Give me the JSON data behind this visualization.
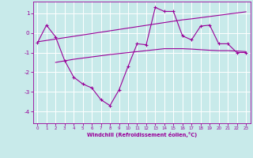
{
  "bg_color": "#c8eaea",
  "line_color": "#990099",
  "grid_color": "#ffffff",
  "xlabel": "Windchill (Refroidissement éolien,°C)",
  "xlabel_color": "#990099",
  "tick_color": "#990099",
  "xlim": [
    -0.5,
    23.5
  ],
  "ylim": [
    -4.6,
    1.6
  ],
  "yticks": [
    1,
    0,
    -1,
    -2,
    -3,
    -4
  ],
  "xticks": [
    0,
    1,
    2,
    3,
    4,
    5,
    6,
    7,
    8,
    9,
    10,
    11,
    12,
    13,
    14,
    15,
    16,
    17,
    18,
    19,
    20,
    21,
    22,
    23
  ],
  "line1_x": [
    0,
    1,
    2,
    3,
    4,
    5,
    6,
    7,
    8,
    9,
    10,
    11,
    12,
    13,
    14,
    15,
    16,
    17,
    18,
    19,
    20,
    21,
    22,
    23
  ],
  "line1_y": [
    -0.5,
    0.4,
    -0.2,
    -1.4,
    -2.25,
    -2.6,
    -2.8,
    -3.4,
    -3.7,
    -2.9,
    -1.7,
    -0.55,
    -0.6,
    1.3,
    1.1,
    1.1,
    -0.15,
    -0.35,
    0.35,
    0.4,
    -0.55,
    -0.55,
    -1.0,
    -1.0
  ],
  "line2_x": [
    0,
    1,
    2,
    3,
    4,
    5,
    6,
    7,
    8,
    9,
    10,
    11,
    12,
    13,
    14,
    15,
    16,
    17,
    18,
    19,
    20,
    21,
    22,
    23
  ],
  "line2_y": [
    -0.45,
    -0.38,
    -0.31,
    -0.24,
    -0.17,
    -0.1,
    -0.03,
    0.04,
    0.11,
    0.18,
    0.25,
    0.32,
    0.39,
    0.46,
    0.53,
    0.6,
    0.67,
    0.72,
    0.78,
    0.84,
    0.9,
    0.96,
    1.02,
    1.08
  ],
  "line3_x": [
    2,
    3,
    4,
    5,
    6,
    7,
    8,
    9,
    10,
    11,
    12,
    13,
    14,
    15,
    16,
    17,
    18,
    19,
    20,
    21,
    22,
    23
  ],
  "line3_y": [
    -1.5,
    -1.42,
    -1.34,
    -1.28,
    -1.22,
    -1.16,
    -1.1,
    -1.05,
    -1.0,
    -0.95,
    -0.9,
    -0.85,
    -0.8,
    -0.8,
    -0.8,
    -0.82,
    -0.85,
    -0.88,
    -0.9,
    -0.9,
    -0.92,
    -0.95
  ]
}
